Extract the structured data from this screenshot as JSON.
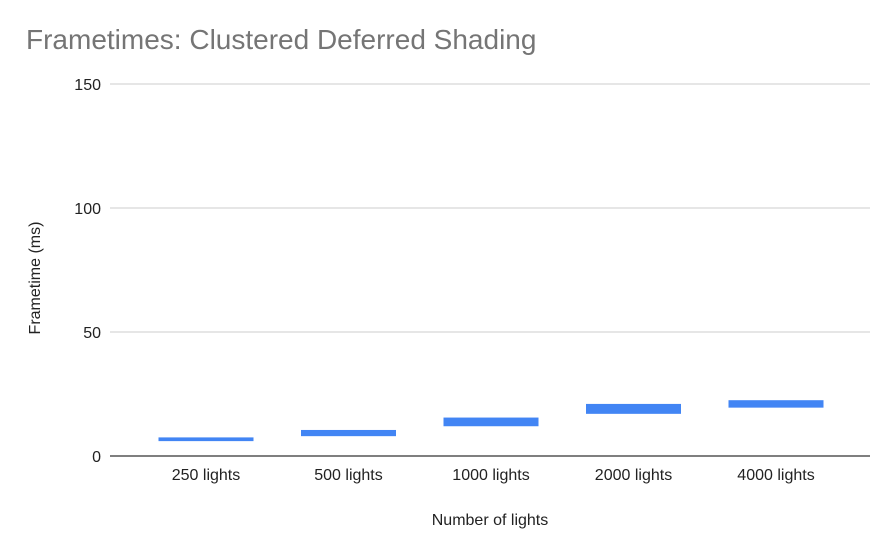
{
  "chart_data": {
    "type": "bar",
    "title": "Frametimes: Clustered Deferred Shading",
    "xlabel": "Number of lights",
    "ylabel": "Frametime (ms)",
    "ylim": [
      0,
      150
    ],
    "yticks": [
      0,
      50,
      100,
      150
    ],
    "categories": [
      "250 lights",
      "500 lights",
      "1000 lights",
      "2000 lights",
      "4000 lights"
    ],
    "series": [
      {
        "low": [
          6,
          8,
          12,
          17,
          19.5
        ],
        "high": [
          7.5,
          10.5,
          15.5,
          21,
          22.5
        ]
      }
    ],
    "grid": true,
    "legend": "none",
    "color": "#4285f4"
  }
}
